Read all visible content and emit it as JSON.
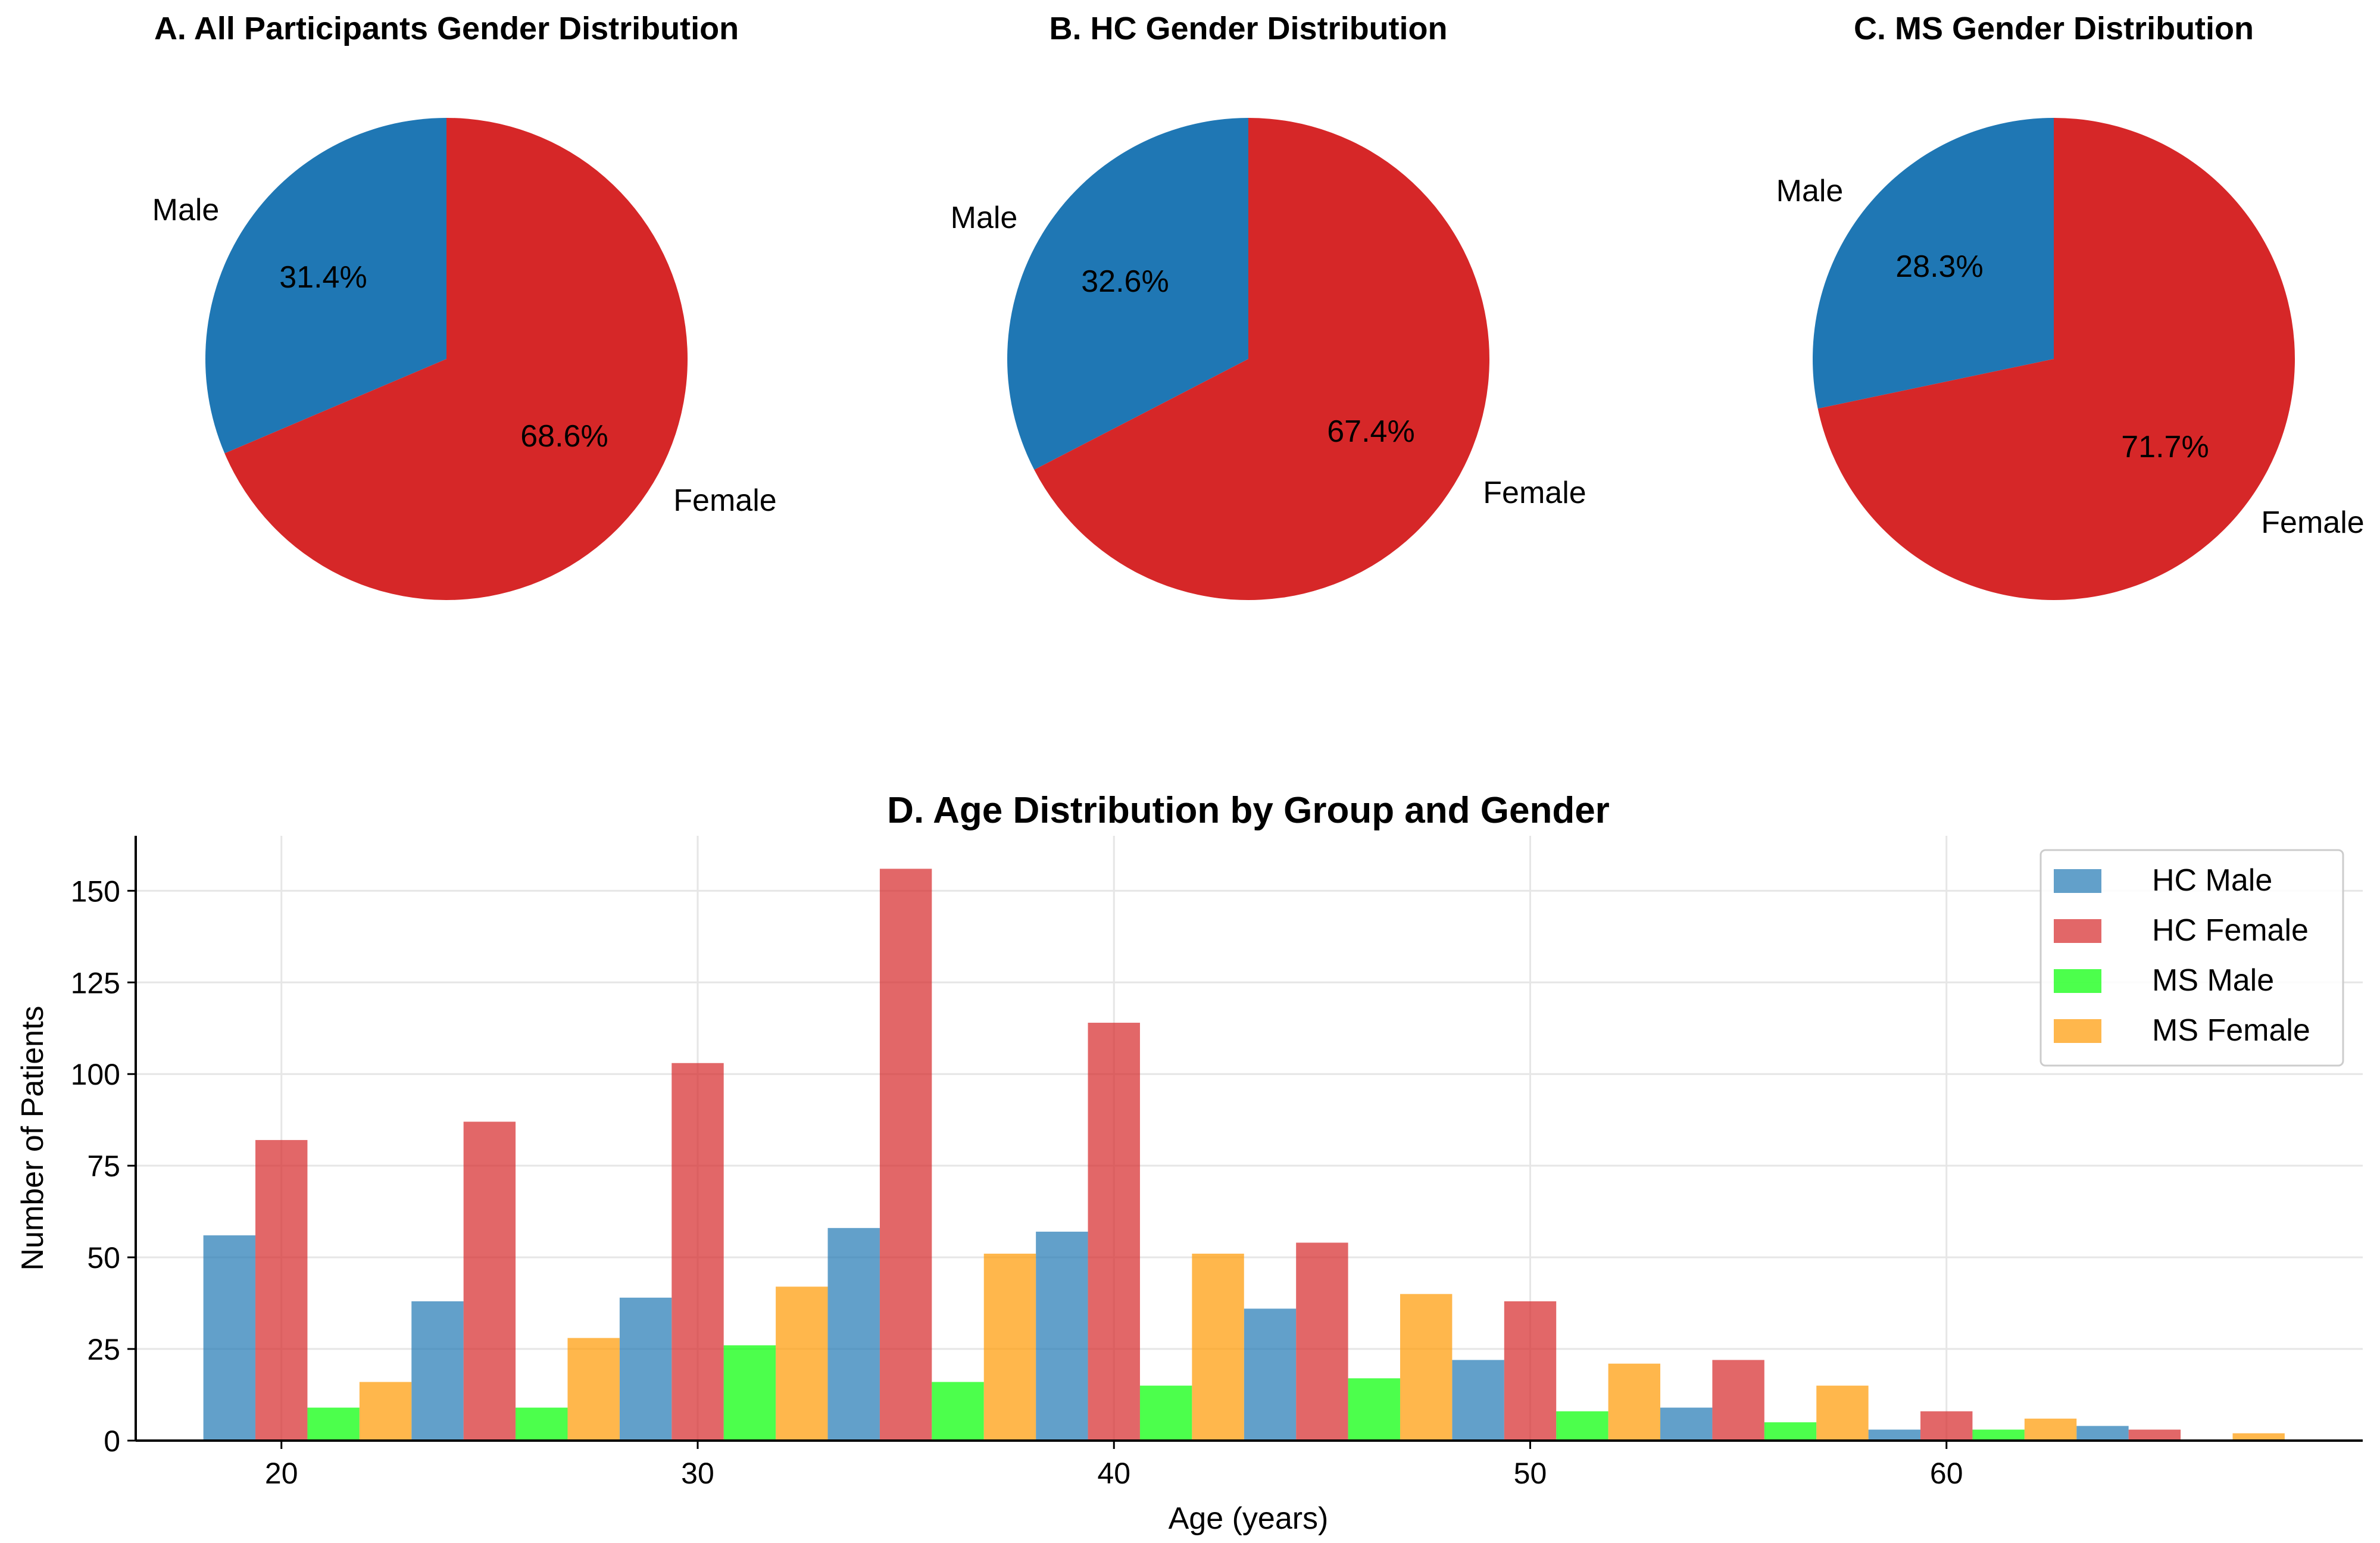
{
  "chart_data": [
    {
      "type": "pie",
      "title": "A. All Participants Gender Distribution",
      "labels": [
        "Male",
        "Female"
      ],
      "values": [
        31.4,
        68.6
      ],
      "pct_labels": [
        "31.4%",
        "68.6%"
      ],
      "colors": [
        "#1f77b4",
        "#d62728"
      ]
    },
    {
      "type": "pie",
      "title": "B. HC Gender Distribution",
      "labels": [
        "Male",
        "Female"
      ],
      "values": [
        32.6,
        67.4
      ],
      "pct_labels": [
        "32.6%",
        "67.4%"
      ],
      "colors": [
        "#1f77b4",
        "#d62728"
      ]
    },
    {
      "type": "pie",
      "title": "C. MS Gender Distribution",
      "labels": [
        "Male",
        "Female"
      ],
      "values": [
        28.3,
        71.7
      ],
      "pct_labels": [
        "28.3%",
        "71.7%"
      ],
      "colors": [
        "#1f77b4",
        "#d62728"
      ]
    },
    {
      "type": "bar",
      "title": "D. Age Distribution by Group and Gender",
      "xlabel": "Age (years)",
      "ylabel": "Number of Patients",
      "x": [
        20,
        25,
        30,
        35,
        40,
        45,
        50,
        55,
        60,
        65
      ],
      "xlim": [
        16.5,
        70
      ],
      "ylim": [
        0,
        165
      ],
      "xticks": [
        20,
        30,
        40,
        50,
        60
      ],
      "yticks": [
        0,
        25,
        50,
        75,
        100,
        125,
        150
      ],
      "grid": true,
      "legend_position": "top-right",
      "series": [
        {
          "name": "HC Male",
          "color": "#1f77b4",
          "values": [
            56,
            38,
            39,
            58,
            57,
            36,
            22,
            9,
            3,
            4
          ]
        },
        {
          "name": "HC Female",
          "color": "#d62728",
          "values": [
            82,
            87,
            103,
            156,
            114,
            54,
            38,
            22,
            8,
            3
          ]
        },
        {
          "name": "MS Male",
          "color": "#00ff00",
          "values": [
            9,
            9,
            26,
            16,
            15,
            17,
            8,
            5,
            3,
            0
          ]
        },
        {
          "name": "MS Female",
          "color": "#ff9900",
          "values": [
            16,
            28,
            42,
            51,
            51,
            40,
            21,
            15,
            6,
            2
          ]
        }
      ]
    }
  ]
}
